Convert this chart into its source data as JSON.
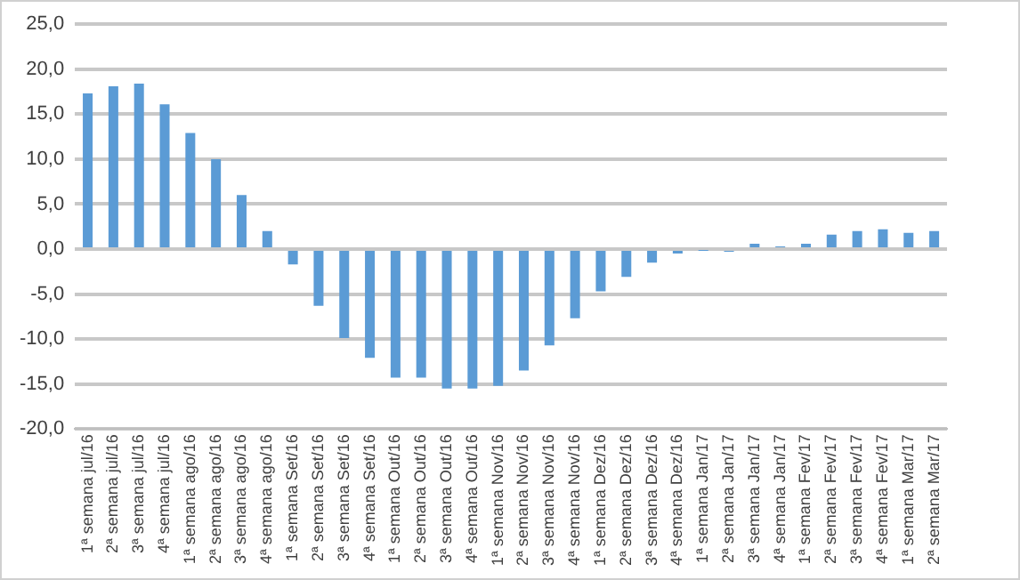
{
  "chart_data": {
    "type": "bar",
    "categories": [
      "1ª semana jul/16",
      "2ª semana jul/16",
      "3ª semana jul/16",
      "4ª semana jul/16",
      "1ª semana ago/16",
      "2ª semana ago/16",
      "3ª semana ago/16",
      "4ª semana ago/16",
      "1ª semana Set/16",
      "2ª semana Set/16",
      "3ª semana Set/16",
      "4ª semana Set/16",
      "1ª semana Out/16",
      "2ª semana Out/16",
      "3ª semana Out/16",
      "4ª semana Out/16",
      "1ª semana Nov/16",
      "2ª semana Nov/16",
      "3ª semana Nov/16",
      "4ª semana Nov/16",
      "1ª semana Dez/16",
      "2ª semana Dez/16",
      "3ª semana Dez/16",
      "4ª semana Dez/16",
      "1ª semana Jan/17",
      "2ª semana Jan/17",
      "3ª semana Jan/17",
      "4ª semana Jan/17",
      "1ª semana Fev/17",
      "2ª semana Fev/17",
      "3ª semana Fev/17",
      "4ª semana Fev/17",
      "1ª semana Mar/17",
      "2ª semana Mar/17"
    ],
    "values": [
      17.3,
      18.1,
      18.4,
      16.1,
      12.9,
      10.0,
      6.0,
      2.0,
      -1.7,
      -6.3,
      -9.9,
      -12.1,
      -14.3,
      -14.3,
      -15.5,
      -15.5,
      -15.2,
      -13.5,
      -10.7,
      -7.7,
      -4.7,
      -3.1,
      -1.5,
      -0.5,
      -0.1,
      -0.3,
      0.6,
      0.3,
      0.6,
      1.6,
      2.0,
      2.2,
      1.8,
      2.0
    ],
    "color": "#5b9bd5",
    "ylim": [
      -20,
      25
    ],
    "yticks": [
      {
        "value": -20,
        "label": "-20,0"
      },
      {
        "value": -15,
        "label": "-15,0"
      },
      {
        "value": -10,
        "label": "-10,0"
      },
      {
        "value": -5,
        "label": "-5,0"
      },
      {
        "value": 0,
        "label": "0,0"
      },
      {
        "value": 5,
        "label": "5,0"
      },
      {
        "value": 10,
        "label": "10,0"
      },
      {
        "value": 15,
        "label": "15,0"
      },
      {
        "value": 20,
        "label": "20,0"
      },
      {
        "value": 25,
        "label": "25,0"
      }
    ],
    "grid": "y"
  }
}
